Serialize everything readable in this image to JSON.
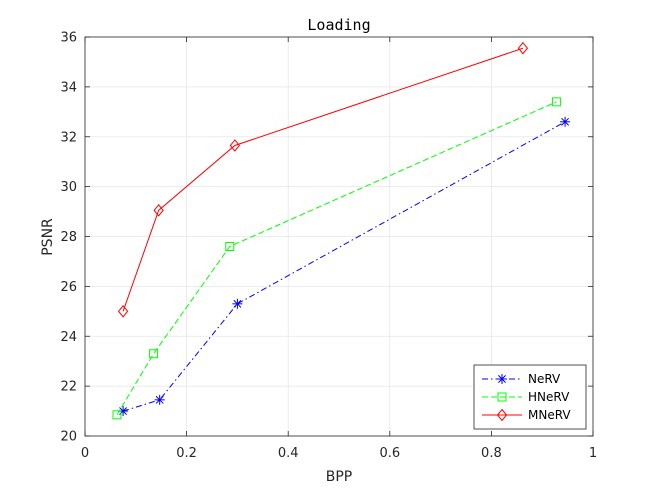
{
  "chart_data": {
    "type": "line",
    "title": "Loading",
    "xlabel": "BPP",
    "ylabel": "PSNR",
    "xlim": [
      0,
      1
    ],
    "ylim": [
      20,
      36
    ],
    "xticks": [
      0,
      0.2,
      0.4,
      0.6,
      0.8,
      1
    ],
    "xtick_labels": [
      "0",
      "0.2",
      "0.4",
      "0.6",
      "0.8",
      "1"
    ],
    "yticks": [
      20,
      22,
      24,
      26,
      28,
      30,
      32,
      34,
      36
    ],
    "ytick_labels": [
      "20",
      "22",
      "24",
      "26",
      "28",
      "30",
      "32",
      "34",
      "36"
    ],
    "grid": true,
    "legend_position": "bottom-right",
    "series": [
      {
        "name": "NeRV",
        "color": "#0000ff",
        "line_style": "dash-dot",
        "marker": "asterisk",
        "x": [
          0.075,
          0.147,
          0.3,
          0.945
        ],
        "y": [
          21.0,
          21.45,
          25.3,
          32.6
        ]
      },
      {
        "name": "HNeRV",
        "color": "#00ff00",
        "line_style": "dashed",
        "marker": "square",
        "x": [
          0.063,
          0.135,
          0.285,
          0.928
        ],
        "y": [
          20.85,
          23.3,
          27.6,
          33.4
        ]
      },
      {
        "name": "MNeRV",
        "color": "#ff0000",
        "line_style": "solid",
        "marker": "diamond",
        "x": [
          0.075,
          0.145,
          0.295,
          0.862
        ],
        "y": [
          25.0,
          29.05,
          31.65,
          35.55
        ]
      }
    ]
  }
}
